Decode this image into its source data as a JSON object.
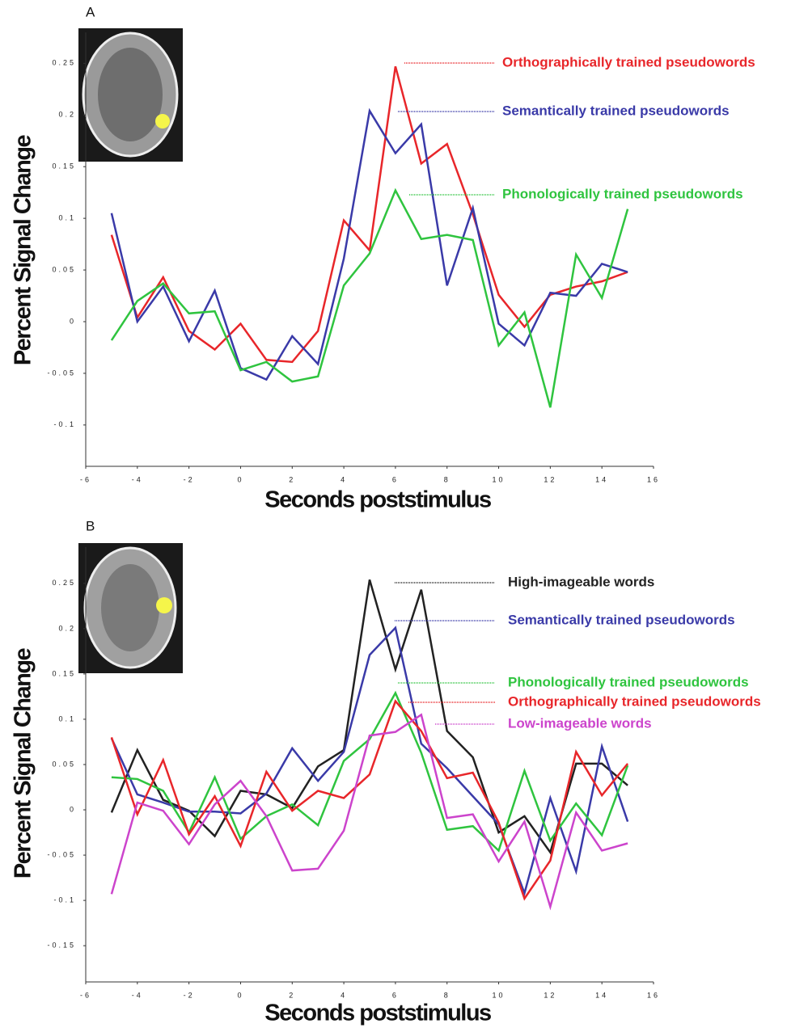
{
  "chart_data": [
    {
      "type": "line",
      "panel": "A",
      "x_label": "Seconds poststimulus",
      "y_label": "Percent Signal Change",
      "x": [
        -5,
        -4,
        -3,
        -2,
        -1,
        0,
        1,
        2,
        3,
        4,
        5,
        6,
        7,
        8,
        9,
        10,
        11,
        12,
        13,
        14,
        15
      ],
      "xlim": [
        -6,
        16
      ],
      "xticks": [
        -6,
        -4,
        -2,
        0,
        2,
        4,
        6,
        8,
        10,
        12,
        14,
        16
      ],
      "ylim": [
        -0.14,
        0.28
      ],
      "yticks": [
        -0.1,
        -0.05,
        0,
        0.05,
        0.1,
        0.15,
        0.2,
        0.25
      ],
      "series": [
        {
          "name": "Orthographically trained pseudowords",
          "color": "#e8262a",
          "values": [
            0.084,
            0.004,
            0.043,
            -0.009,
            -0.027,
            -0.002,
            -0.037,
            -0.039,
            -0.009,
            0.098,
            0.069,
            0.247,
            0.153,
            0.172,
            0.104,
            0.026,
            -0.005,
            0.026,
            0.034,
            0.039,
            0.048
          ]
        },
        {
          "name": "Semantically trained pseudowords",
          "color": "#3a3aa8",
          "values": [
            0.105,
            0.0,
            0.034,
            -0.019,
            0.03,
            -0.045,
            -0.056,
            -0.014,
            -0.041,
            0.061,
            0.204,
            0.163,
            0.191,
            0.035,
            0.11,
            -0.002,
            -0.023,
            0.028,
            0.025,
            0.056,
            0.048
          ]
        },
        {
          "name": "Phonologically trained pseudowords",
          "color": "#2fc43f",
          "values": [
            -0.018,
            0.02,
            0.037,
            0.008,
            0.01,
            -0.047,
            -0.039,
            -0.058,
            -0.053,
            0.035,
            0.066,
            0.127,
            0.08,
            0.084,
            0.079,
            -0.023,
            0.009,
            -0.083,
            0.065,
            0.023,
            0.109
          ]
        }
      ]
    },
    {
      "type": "line",
      "panel": "B",
      "x_label": "Seconds poststimulus",
      "y_label": "Percent Signal Change",
      "x": [
        -5,
        -4,
        -3,
        -2,
        -1,
        0,
        1,
        2,
        3,
        4,
        5,
        6,
        7,
        8,
        9,
        10,
        11,
        12,
        13,
        14,
        15
      ],
      "xlim": [
        -6,
        16
      ],
      "xticks": [
        -6,
        -4,
        -2,
        0,
        2,
        4,
        6,
        8,
        10,
        12,
        14,
        16
      ],
      "ylim": [
        -0.19,
        0.29
      ],
      "yticks": [
        -0.15,
        -0.1,
        -0.05,
        0,
        0.05,
        0.1,
        0.15,
        0.2,
        0.25
      ],
      "series": [
        {
          "name": "High-imageable words",
          "color": "#222222",
          "values": [
            -0.003,
            0.066,
            0.011,
            -0.001,
            -0.029,
            0.021,
            0.017,
            0.002,
            0.048,
            0.066,
            0.254,
            0.155,
            0.243,
            0.087,
            0.058,
            -0.025,
            -0.007,
            -0.047,
            0.051,
            0.051,
            0.027
          ]
        },
        {
          "name": "Semantically trained pseudowords",
          "color": "#3a3aa8",
          "values": [
            0.079,
            0.017,
            0.008,
            -0.002,
            -0.002,
            -0.004,
            0.018,
            0.068,
            0.032,
            0.064,
            0.171,
            0.201,
            0.073,
            0.046,
            0.015,
            -0.016,
            -0.092,
            0.013,
            -0.068,
            0.07,
            -0.013
          ]
        },
        {
          "name": "Phonologically trained pseudowords",
          "color": "#2fc43f",
          "values": [
            0.036,
            0.034,
            0.021,
            -0.025,
            0.036,
            -0.032,
            -0.007,
            0.006,
            -0.017,
            0.054,
            0.078,
            0.129,
            0.063,
            -0.022,
            -0.018,
            -0.045,
            0.043,
            -0.034,
            0.007,
            -0.028,
            0.049
          ]
        },
        {
          "name": "Orthographically trained pseudowords",
          "color": "#e8262a",
          "values": [
            0.08,
            -0.005,
            0.055,
            -0.027,
            0.015,
            -0.04,
            0.042,
            -0.001,
            0.021,
            0.013,
            0.039,
            0.12,
            0.087,
            0.035,
            0.041,
            -0.014,
            -0.098,
            -0.056,
            0.064,
            0.016,
            0.051
          ]
        },
        {
          "name": "Low-imageable words",
          "color": "#cc44cc",
          "values": [
            -0.093,
            0.008,
            -0.001,
            -0.038,
            0.006,
            0.032,
            -0.007,
            -0.067,
            -0.065,
            -0.023,
            0.082,
            0.086,
            0.105,
            -0.009,
            -0.005,
            -0.057,
            -0.013,
            -0.107,
            -0.003,
            -0.045,
            -0.037
          ]
        }
      ]
    }
  ]
}
